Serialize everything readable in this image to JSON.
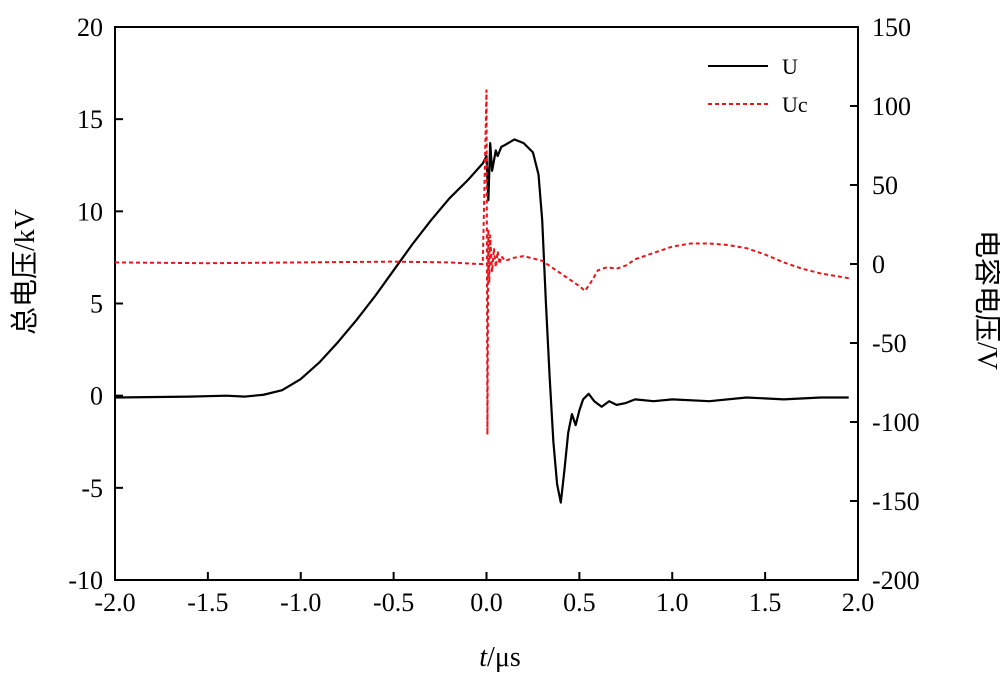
{
  "chart_data": {
    "type": "line",
    "xlabel_italic": "t",
    "xlabel_unit": "/μs",
    "ylabel_left": "总电压/kV",
    "ylabel_right": "电容电压/V",
    "xlim": [
      -2.0,
      2.0
    ],
    "ylim_left": [
      -10,
      20
    ],
    "ylim_right": [
      -200,
      150
    ],
    "xticks": [
      "-2.0",
      "-1.5",
      "-1.0",
      "-0.5",
      "0.0",
      "0.5",
      "1.0",
      "1.5",
      "2.0"
    ],
    "xtick_values": [
      -2.0,
      -1.5,
      -1.0,
      -0.5,
      0.0,
      0.5,
      1.0,
      1.5,
      2.0
    ],
    "yticks_left": [
      "20",
      "15",
      "10",
      "5",
      "0",
      "-5",
      "-10"
    ],
    "ytick_values_left": [
      20,
      15,
      10,
      5,
      0,
      -5,
      -10
    ],
    "yticks_right": [
      "150",
      "100",
      "50",
      "0",
      "-50",
      "-100",
      "-150",
      "-200"
    ],
    "ytick_values_right": [
      150,
      100,
      50,
      0,
      -50,
      -100,
      -150,
      -200
    ],
    "grid": false,
    "legend_position": "top-right",
    "series": [
      {
        "name": "U",
        "axis": "left",
        "color": "#000000",
        "style": "solid",
        "x": [
          -2.0,
          -1.6,
          -1.4,
          -1.3,
          -1.2,
          -1.1,
          -1.0,
          -0.9,
          -0.8,
          -0.7,
          -0.6,
          -0.5,
          -0.4,
          -0.3,
          -0.2,
          -0.1,
          -0.02,
          0.0,
          0.01,
          0.02,
          0.03,
          0.05,
          0.06,
          0.08,
          0.1,
          0.15,
          0.2,
          0.25,
          0.28,
          0.3,
          0.32,
          0.34,
          0.36,
          0.38,
          0.4,
          0.42,
          0.44,
          0.46,
          0.48,
          0.5,
          0.52,
          0.55,
          0.58,
          0.62,
          0.66,
          0.7,
          0.75,
          0.8,
          0.9,
          1.0,
          1.2,
          1.4,
          1.6,
          1.8,
          1.95
        ],
        "values": [
          -0.1,
          -0.05,
          0.0,
          -0.05,
          0.05,
          0.3,
          0.9,
          1.8,
          2.9,
          4.1,
          5.4,
          6.8,
          8.2,
          9.5,
          10.7,
          11.7,
          12.6,
          13.0,
          10.6,
          13.7,
          12.2,
          13.3,
          13.0,
          13.5,
          13.6,
          13.9,
          13.7,
          13.2,
          12.0,
          9.5,
          5.0,
          1.0,
          -2.5,
          -4.8,
          -5.8,
          -4.0,
          -2.0,
          -1.0,
          -1.6,
          -0.8,
          -0.2,
          0.1,
          -0.3,
          -0.6,
          -0.3,
          -0.5,
          -0.4,
          -0.2,
          -0.3,
          -0.2,
          -0.3,
          -0.1,
          -0.2,
          -0.1,
          -0.1
        ]
      },
      {
        "name": "Uc",
        "axis": "right",
        "color": "#e8141c",
        "style": "dashed",
        "x": [
          -2.0,
          -1.5,
          -1.0,
          -0.5,
          -0.2,
          -0.05,
          -0.02,
          0.0,
          0.005,
          0.01,
          0.015,
          0.02,
          0.03,
          0.04,
          0.05,
          0.06,
          0.07,
          0.08,
          0.1,
          0.15,
          0.2,
          0.3,
          0.35,
          0.4,
          0.45,
          0.5,
          0.53,
          0.56,
          0.6,
          0.65,
          0.7,
          0.75,
          0.8,
          0.9,
          1.0,
          1.1,
          1.2,
          1.3,
          1.4,
          1.5,
          1.6,
          1.7,
          1.8,
          1.9,
          1.95
        ],
        "values": [
          1.0,
          0.5,
          1.0,
          1.5,
          1.0,
          0.0,
          0.0,
          110.0,
          -108.0,
          22.0,
          -12.0,
          18.0,
          -5.0,
          10.0,
          -2.0,
          8.0,
          0.0,
          5.0,
          2.0,
          4.0,
          5.0,
          2.0,
          -2.0,
          -6.0,
          -10.0,
          -14.0,
          -17.0,
          -12.0,
          -4.0,
          -2.0,
          -3.0,
          -1.0,
          3.0,
          7.0,
          11.0,
          13.0,
          13.0,
          12.0,
          10.0,
          6.0,
          1.0,
          -3.0,
          -6.0,
          -8.0,
          -9.0
        ]
      }
    ]
  }
}
